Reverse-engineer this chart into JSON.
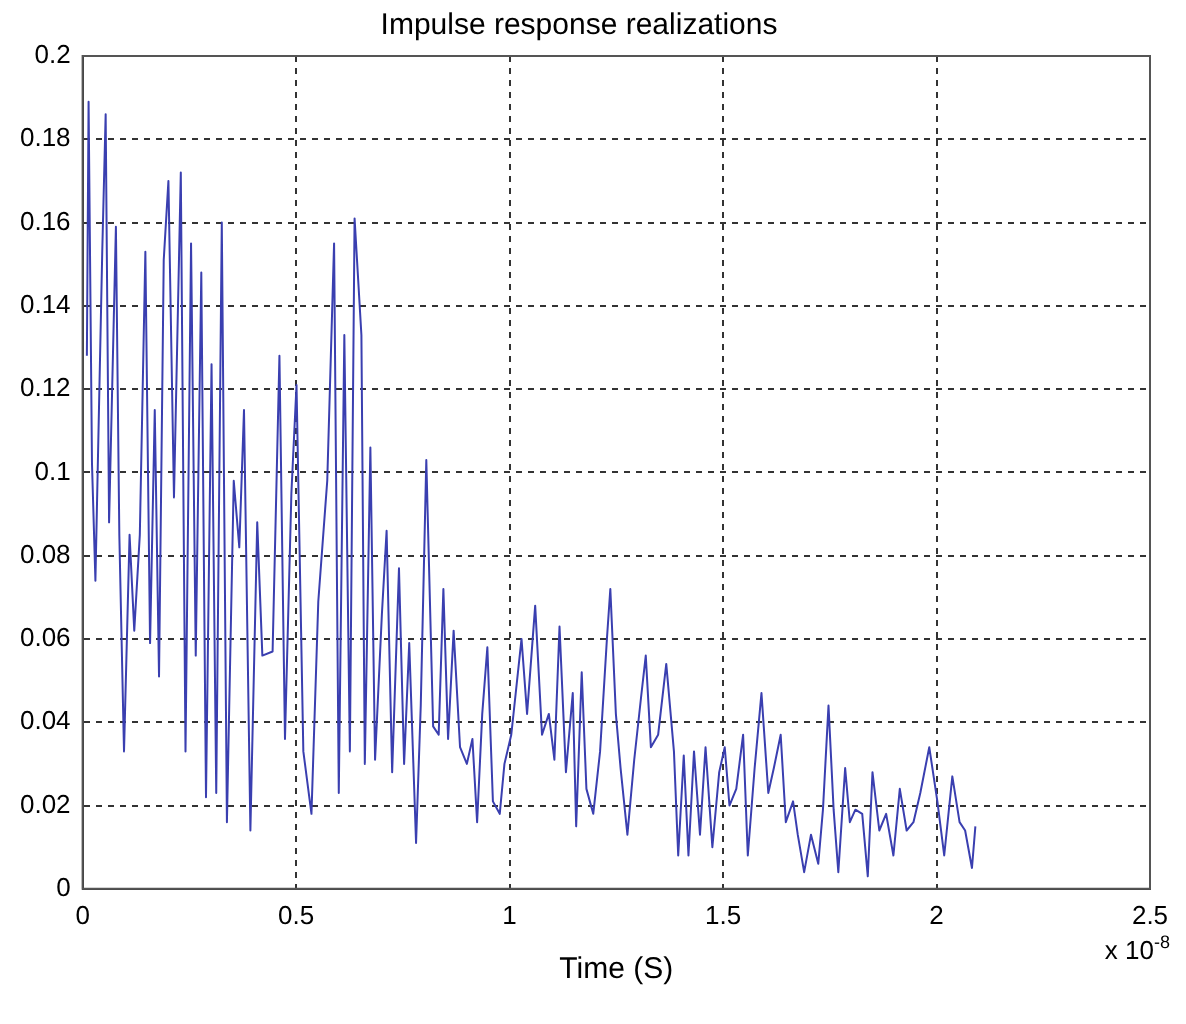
{
  "chart_data": {
    "type": "line",
    "title": "Impulse response realizations",
    "xlabel": "Time (S)",
    "annotations": [
      "x 10$^{-8}$"
    ],
    "xlim": [
      0,
      2.5
    ],
    "xticks": [
      0,
      0.5,
      1,
      1.5,
      2,
      2.5
    ],
    "ylim": [
      0,
      0.2
    ],
    "yticks": [
      0,
      0.02,
      0.04,
      0.06,
      0.08,
      0.1,
      0.12,
      0.14,
      0.16,
      0.18,
      0.2
    ],
    "grid": true,
    "legend": false,
    "marker": "none",
    "line_style": "solid",
    "series": [
      {
        "color": "#3a3fb0",
        "x": [
          0.01,
          0.014,
          0.022,
          0.03,
          0.046,
          0.054,
          0.062,
          0.078,
          0.086,
          0.097,
          0.11,
          0.121,
          0.134,
          0.147,
          0.158,
          0.169,
          0.179,
          0.19,
          0.201,
          0.214,
          0.23,
          0.241,
          0.254,
          0.265,
          0.278,
          0.289,
          0.302,
          0.313,
          0.326,
          0.338,
          0.354,
          0.367,
          0.378,
          0.393,
          0.409,
          0.421,
          0.445,
          0.461,
          0.474,
          0.489,
          0.501,
          0.517,
          0.536,
          0.552,
          0.573,
          0.589,
          0.6,
          0.613,
          0.626,
          0.637,
          0.653,
          0.661,
          0.674,
          0.685,
          0.701,
          0.712,
          0.725,
          0.741,
          0.753,
          0.765,
          0.781,
          0.792,
          0.805,
          0.821,
          0.834,
          0.845,
          0.856,
          0.869,
          0.884,
          0.9,
          0.913,
          0.924,
          0.936,
          0.948,
          0.961,
          0.977,
          0.988,
          1.004,
          1.028,
          1.041,
          1.06,
          1.076,
          1.092,
          1.105,
          1.117,
          1.132,
          1.148,
          1.156,
          1.169,
          1.18,
          1.196,
          1.212,
          1.228,
          1.236,
          1.249,
          1.26,
          1.276,
          1.292,
          1.308,
          1.319,
          1.331,
          1.348,
          1.367,
          1.385,
          1.395,
          1.408,
          1.419,
          1.432,
          1.446,
          1.459,
          1.475,
          1.491,
          1.504,
          1.515,
          1.531,
          1.547,
          1.558,
          1.574,
          1.59,
          1.606,
          1.619,
          1.635,
          1.647,
          1.664,
          1.675,
          1.69,
          1.706,
          1.723,
          1.734,
          1.747,
          1.759,
          1.77,
          1.786,
          1.797,
          1.81,
          1.826,
          1.839,
          1.85,
          1.866,
          1.882,
          1.899,
          1.914,
          1.93,
          1.946,
          1.962,
          1.983,
          2.002,
          2.018,
          2.037,
          2.054,
          2.067,
          2.083,
          2.091
        ],
        "values": [
          0.128,
          0.189,
          0.102,
          0.074,
          0.153,
          0.186,
          0.088,
          0.159,
          0.085,
          0.033,
          0.085,
          0.062,
          0.085,
          0.153,
          0.059,
          0.115,
          0.051,
          0.151,
          0.17,
          0.094,
          0.172,
          0.033,
          0.155,
          0.056,
          0.148,
          0.022,
          0.126,
          0.023,
          0.16,
          0.016,
          0.098,
          0.082,
          0.115,
          0.014,
          0.088,
          0.056,
          0.057,
          0.128,
          0.036,
          0.095,
          0.121,
          0.033,
          0.018,
          0.069,
          0.098,
          0.155,
          0.023,
          0.133,
          0.033,
          0.161,
          0.133,
          0.03,
          0.106,
          0.031,
          0.066,
          0.086,
          0.028,
          0.077,
          0.03,
          0.059,
          0.011,
          0.044,
          0.103,
          0.039,
          0.037,
          0.072,
          0.036,
          0.062,
          0.034,
          0.03,
          0.036,
          0.016,
          0.042,
          0.058,
          0.021,
          0.018,
          0.03,
          0.037,
          0.06,
          0.042,
          0.068,
          0.037,
          0.042,
          0.031,
          0.063,
          0.028,
          0.047,
          0.015,
          0.052,
          0.024,
          0.018,
          0.033,
          0.06,
          0.072,
          0.042,
          0.029,
          0.013,
          0.031,
          0.046,
          0.056,
          0.034,
          0.037,
          0.054,
          0.033,
          0.008,
          0.032,
          0.008,
          0.033,
          0.013,
          0.034,
          0.01,
          0.028,
          0.034,
          0.02,
          0.024,
          0.037,
          0.008,
          0.029,
          0.047,
          0.023,
          0.029,
          0.037,
          0.016,
          0.021,
          0.013,
          0.004,
          0.013,
          0.006,
          0.019,
          0.044,
          0.019,
          0.004,
          0.029,
          0.016,
          0.019,
          0.018,
          0.003,
          0.028,
          0.014,
          0.018,
          0.008,
          0.024,
          0.014,
          0.016,
          0.023,
          0.034,
          0.021,
          0.008,
          0.027,
          0.016,
          0.014,
          0.005,
          0.015
        ]
      }
    ]
  }
}
